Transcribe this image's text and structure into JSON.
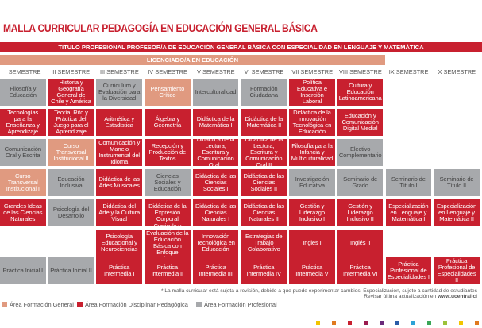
{
  "header": {
    "title": "MALLA CURRICULAR PEDAGOGÍA EN EDUCACIÓN GENERAL BÁSICA",
    "degree": "TITULO PROFESIONAL PROFESOR/A DE EDUCACIÓN GENERAL BÁSICA CON ESPECIALIDAD EN LENGUAJE Y MATEMÁTICA",
    "license": "LICENCIADO/A EN EDUCACIÓN"
  },
  "semesters": [
    "I SEMESTRE",
    "II SEMESTRE",
    "III SEMESTRE",
    "IV SEMESTRE",
    "V SEMESTRE",
    "VI SEMESTRE",
    "VII SEMESTRE",
    "VIII SEMESTRE",
    "IX SEMESTRE",
    "X SEMESTRE"
  ],
  "rows": [
    [
      {
        "text": "Filosofía y Educación",
        "color": "#a7a9ac"
      },
      {
        "text": "Historia y Geografía General de Chile y América",
        "color": "#c8202f"
      },
      {
        "text": "Curriculum y Evaluación para la Diversidad",
        "color": "#a7a9ac"
      },
      {
        "text": "Pensamiento Crítico",
        "color": "#e09a80"
      },
      {
        "text": "Interculturalidad",
        "color": "#a7a9ac"
      },
      {
        "text": "Formación Ciudadana",
        "color": "#a7a9ac"
      },
      {
        "text": "Política Educativa e Inserción Laboral",
        "color": "#c8202f"
      },
      {
        "text": "Cultura y Educación Latinoamericana",
        "color": "#c8202f"
      },
      null,
      null
    ],
    [
      {
        "text": "Tecnologías para la Enseñanza y Aprendizaje",
        "color": "#c8202f"
      },
      {
        "text": "Teoría, Rito y Práctica del Juego para el Aprendizaje",
        "color": "#c8202f"
      },
      {
        "text": "Aritmética y Estadística",
        "color": "#c8202f"
      },
      {
        "text": "Álgebra y Geometría",
        "color": "#c8202f"
      },
      {
        "text": "Didáctica de la Matemática I",
        "color": "#c8202f"
      },
      {
        "text": "Didáctica de la Matemática II",
        "color": "#c8202f"
      },
      {
        "text": "Didáctica de la Innovación Tecnológica en Educación",
        "color": "#c8202f"
      },
      {
        "text": "Educación y Comunicación Digital Medial",
        "color": "#c8202f"
      },
      null,
      null
    ],
    [
      {
        "text": "Comunicación Oral y Escrita",
        "color": "#a7a9ac"
      },
      {
        "text": "Curso Transversal Institucional II",
        "color": "#e09a80"
      },
      {
        "text": "Comunicación y Manejo Instrumental del Idioma",
        "color": "#c8202f"
      },
      {
        "text": "Recepción y Producción de Textos",
        "color": "#c8202f"
      },
      {
        "text": "Didáctica de la Lectura, Escritura y Comunicación Oral I",
        "color": "#c8202f"
      },
      {
        "text": "Didáctica de la Lectura, Escritura y Comunicación Oral II",
        "color": "#c8202f"
      },
      {
        "text": "Filosofía para la Infancia y Multiculturalidad",
        "color": "#c8202f"
      },
      {
        "text": "Electivo Complementario",
        "color": "#a7a9ac"
      },
      null,
      null
    ],
    [
      {
        "text": "Curso Transversal Institucional I",
        "color": "#e09a80"
      },
      {
        "text": "Educación Inclusiva",
        "color": "#a7a9ac"
      },
      {
        "text": "Didáctica de las Artes Musicales",
        "color": "#c8202f"
      },
      {
        "text": "Ciencias Sociales y Educación",
        "color": "#a7a9ac"
      },
      {
        "text": "Didáctica de las Ciencias Sociales I",
        "color": "#c8202f"
      },
      {
        "text": "Didáctica de las Ciencias Sociales II",
        "color": "#c8202f"
      },
      {
        "text": "Investigación Educativa",
        "color": "#a7a9ac"
      },
      {
        "text": "Seminario de Grado",
        "color": "#a7a9ac"
      },
      {
        "text": "Seminario de Título I",
        "color": "#a7a9ac"
      },
      {
        "text": "Seminario de Título II",
        "color": "#a7a9ac"
      }
    ],
    [
      {
        "text": "Grandes Ideas de las Ciencias Naturales",
        "color": "#c8202f"
      },
      {
        "text": "Psicología del Desarrollo",
        "color": "#a7a9ac"
      },
      {
        "text": "Didáctica del Arte y la Cultura Visual",
        "color": "#c8202f"
      },
      {
        "text": "Didáctica de la Expresión Corporal",
        "color": "#c8202f"
      },
      {
        "text": "Didáctica de las Ciencias Naturales I",
        "color": "#c8202f"
      },
      {
        "text": "Didáctica de las Ciencias Naturales II",
        "color": "#c8202f"
      },
      {
        "text": "Gestión y Liderazgo Inclusivo I",
        "color": "#c8202f"
      },
      {
        "text": "Gestión y Liderazgo Inclusivo II",
        "color": "#c8202f"
      },
      {
        "text": "Especialización en Lenguaje y Matemática I",
        "color": "#c8202f"
      },
      {
        "text": "Especialización en Lenguaje y Matemática II",
        "color": "#c8202f"
      }
    ],
    [
      null,
      null,
      {
        "text": "Psicología Educacional y Neurociencias",
        "color": "#c8202f"
      },
      {
        "text": "Curriculo y Evaluación de la Educación Básica con Enfoque Inclusivo",
        "color": "#c8202f"
      },
      {
        "text": "Innovación Tecnológica en Educación",
        "color": "#c8202f"
      },
      {
        "text": "Estrategias de Trabajo Colaborativo",
        "color": "#c8202f"
      },
      {
        "text": "Inglés I",
        "color": "#c8202f"
      },
      {
        "text": "Inglés II",
        "color": "#c8202f"
      },
      null,
      null
    ],
    [
      {
        "text": "Práctica Inicial I",
        "color": "#a7a9ac"
      },
      {
        "text": "Práctica Inicial II",
        "color": "#a7a9ac"
      },
      {
        "text": "Práctica Intermedia I",
        "color": "#c8202f"
      },
      {
        "text": "Práctica Intermedia II",
        "color": "#c8202f"
      },
      {
        "text": "Práctica Intermedia III",
        "color": "#c8202f"
      },
      {
        "text": "Práctica Intermedia IV",
        "color": "#c8202f"
      },
      {
        "text": "Práctica Intermedia V",
        "color": "#c8202f"
      },
      {
        "text": "Práctica Intermedia VI",
        "color": "#c8202f"
      },
      {
        "text": "Práctica Profesional de Especialidades I",
        "color": "#c8202f"
      },
      {
        "text": "Práctica Profesional de Especialidades II",
        "color": "#c8202f"
      }
    ]
  ],
  "footer": {
    "note": "* La malla curricular está sujeta a revisión, debido a que puede experimentar cambios. Especialización, sujeto a cantidad de estudiantes",
    "update": "Revisar última actualización en",
    "website": "www.ucentral.cl"
  },
  "legend": [
    {
      "label": "Área Formación General",
      "color": "#e09a80"
    },
    {
      "label": "Área Formación Disciplinar Pedagógica",
      "color": "#c8202f"
    },
    {
      "label": "Área Formación Profesional",
      "color": "#a7a9ac"
    }
  ]
}
